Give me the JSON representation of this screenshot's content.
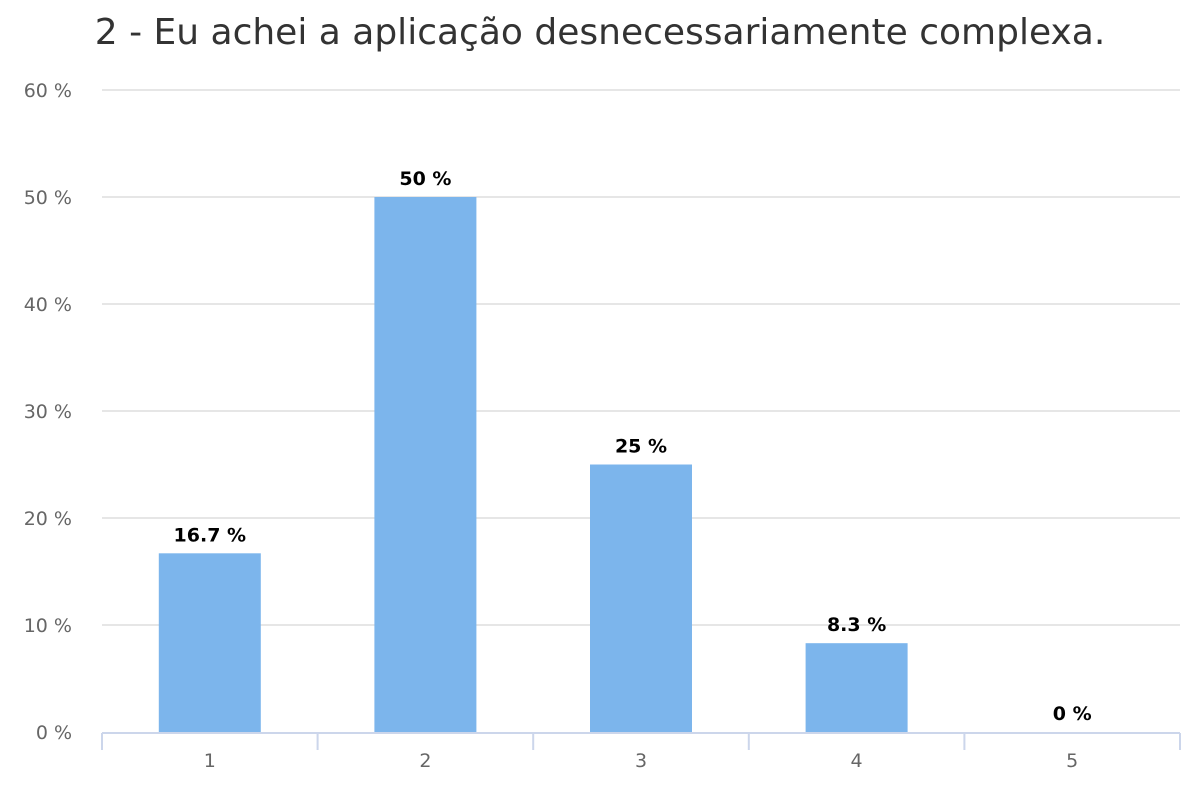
{
  "chart_data": {
    "type": "bar",
    "title": "2 - Eu achei a aplicação desnecessariamente complexa.",
    "xlabel": "",
    "ylabel": "",
    "categories": [
      "1",
      "2",
      "3",
      "4",
      "5"
    ],
    "values": [
      16.7,
      50,
      25,
      8.3,
      0
    ],
    "data_labels": [
      "16.7 %",
      "50 %",
      "25 %",
      "8.3 %",
      "0 %"
    ],
    "ylim": [
      0,
      60
    ],
    "y_ticks": [
      0,
      10,
      20,
      30,
      40,
      50,
      60
    ],
    "y_tick_labels": [
      "0 %",
      "10 %",
      "20 %",
      "30 %",
      "40 %",
      "50 %",
      "60 %"
    ],
    "grid": true,
    "legend": "none",
    "bar_color": "#7cb5ec"
  }
}
